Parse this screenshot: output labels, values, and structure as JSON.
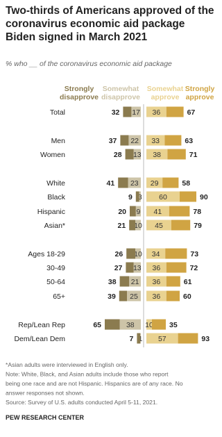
{
  "chart_data": {
    "type": "diverging-bar",
    "title": [
      "Two-thirds of Americans approved of the",
      "coronavirus economic aid package",
      "Biden signed in March 2021"
    ],
    "subtitle": "% who __ of the coronavirus economic aid package",
    "categories": [
      "Total",
      "Men",
      "Women",
      "White",
      "Black",
      "Hispanic",
      "Asian*",
      "Ages 18-29",
      "30-49",
      "50-64",
      "65+",
      "Rep/Lean Rep",
      "Dem/Lean Dem"
    ],
    "series": [
      {
        "name": "Strongly disapprove",
        "color": "#8b7b4f",
        "side": "left",
        "values": [
          15,
          15,
          15,
          18,
          6,
          11,
          11,
          16,
          14,
          17,
          14,
          27,
          6
        ]
      },
      {
        "name": "Somewhat disapprove",
        "color": "#cdc4a8",
        "side": "left",
        "labeled": true,
        "values": [
          17,
          22,
          13,
          23,
          3,
          9,
          10,
          10,
          13,
          21,
          25,
          38,
          1
        ]
      },
      {
        "name": "Somewhat approve",
        "color": "#e9d290",
        "side": "right",
        "labeled": true,
        "values": [
          36,
          33,
          38,
          29,
          60,
          41,
          45,
          34,
          36,
          36,
          36,
          10,
          57
        ]
      },
      {
        "name": "Strongly approve",
        "color": "#d0a443",
        "side": "right",
        "values": [
          31,
          30,
          33,
          29,
          30,
          37,
          34,
          39,
          36,
          25,
          24,
          25,
          36
        ]
      }
    ],
    "net_disapprove": [
      32,
      37,
      28,
      41,
      9,
      20,
      21,
      26,
      27,
      38,
      39,
      65,
      7
    ],
    "net_approve": [
      67,
      63,
      71,
      58,
      90,
      78,
      79,
      73,
      72,
      61,
      60,
      35,
      93
    ],
    "notes": [
      "*Asian adults were interviewed in English only.",
      "Note: White, Black, and Asian adults include those who report",
      "being one race and are not Hispanic. Hispanics are of any race. No",
      "answer responses not shown.",
      "Source: Survey of U.S. adults conducted April 5-11, 2021."
    ],
    "source_org": "PEW RESEARCH CENTER"
  }
}
